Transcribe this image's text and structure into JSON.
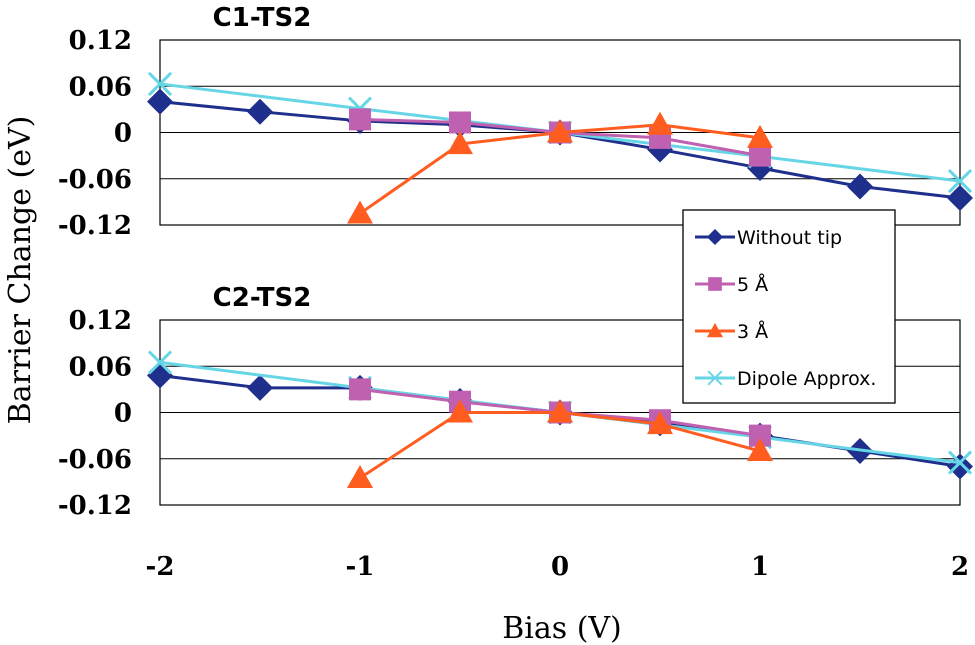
{
  "chart_data": [
    {
      "type": "line",
      "title": "C1-TS2",
      "ylim": [
        -0.12,
        0.12
      ],
      "xlim": [
        -2,
        2
      ],
      "yticks": [
        "0.12",
        "0.06",
        "0",
        "-0.06",
        "-0.12"
      ],
      "ytick_values": [
        0.12,
        0.06,
        0,
        -0.06,
        -0.12
      ],
      "grid": true,
      "series": [
        {
          "name": "Without tip",
          "color": "#1f2f8c",
          "marker": "diamond",
          "x": [
            -2,
            -1.5,
            -1,
            -0.5,
            0,
            0.5,
            1,
            1.5,
            2
          ],
          "y": [
            0.04,
            0.027,
            0.015,
            0.01,
            0,
            -0.022,
            -0.046,
            -0.07,
            -0.085
          ]
        },
        {
          "name": "5 Å",
          "color": "#c060b0",
          "marker": "square",
          "x": [
            -1,
            -0.5,
            0,
            0.5,
            1
          ],
          "y": [
            0.017,
            0.013,
            0,
            -0.007,
            -0.03
          ]
        },
        {
          "name": "3 Å",
          "color": "#ff5c1f",
          "marker": "triangle",
          "x": [
            -1,
            -0.5,
            0,
            0.5,
            1
          ],
          "y": [
            -0.105,
            -0.015,
            0,
            0.01,
            -0.007
          ]
        },
        {
          "name": "Dipole Approx.",
          "color": "#66d6e6",
          "marker": "x",
          "x": [
            -2,
            -1,
            0,
            1,
            2
          ],
          "y": [
            0.063,
            0.031,
            0,
            -0.031,
            -0.063
          ]
        }
      ]
    },
    {
      "type": "line",
      "title": "C2-TS2",
      "ylim": [
        -0.12,
        0.12
      ],
      "xlim": [
        -2,
        2
      ],
      "yticks": [
        "0.12",
        "0.06",
        "0",
        "-0.06",
        "-0.12"
      ],
      "ytick_values": [
        0.12,
        0.06,
        0,
        -0.06,
        -0.12
      ],
      "xticks": [
        "-2",
        "-1",
        "0",
        "1",
        "2"
      ],
      "xtick_values": [
        -2,
        -1,
        0,
        1,
        2
      ],
      "grid": true,
      "series": [
        {
          "name": "Without tip",
          "color": "#1f2f8c",
          "marker": "diamond",
          "x": [
            -2,
            -1.5,
            -1,
            -0.5,
            0,
            0.5,
            1,
            1.5,
            2
          ],
          "y": [
            0.048,
            0.032,
            0.032,
            0.015,
            0,
            -0.014,
            -0.03,
            -0.05,
            -0.07
          ]
        },
        {
          "name": "5 Å",
          "color": "#c060b0",
          "marker": "square",
          "x": [
            -1,
            -0.5,
            0,
            0.5,
            1
          ],
          "y": [
            0.03,
            0.014,
            0,
            -0.01,
            -0.03
          ]
        },
        {
          "name": "3 Å",
          "color": "#ff5c1f",
          "marker": "triangle",
          "x": [
            -1,
            -0.5,
            0,
            0.5,
            1
          ],
          "y": [
            -0.085,
            0,
            0,
            -0.015,
            -0.05
          ]
        },
        {
          "name": "Dipole Approx.",
          "color": "#66d6e6",
          "marker": "x",
          "x": [
            -2,
            -1,
            0,
            1,
            2
          ],
          "y": [
            0.065,
            0.032,
            0,
            -0.032,
            -0.065
          ]
        }
      ]
    }
  ],
  "ylabel": "Barrier Change (eV)",
  "xlabel": "Bias (V)",
  "legend": [
    "Without tip",
    "5 Å",
    "3 Å",
    "Dipole Approx."
  ],
  "legend_placement": "right, between panels"
}
